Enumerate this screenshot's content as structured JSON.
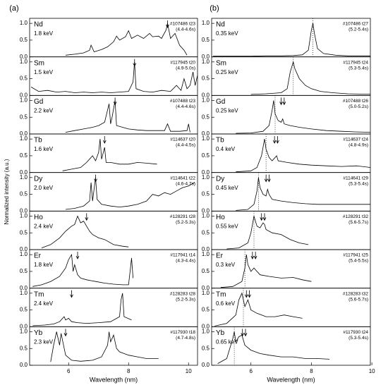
{
  "panel_labels": [
    "(a)",
    "(b)"
  ],
  "y_label": "Normalized intensity (a.u.)",
  "chart_data": [
    {
      "type": "line",
      "title": "Nd",
      "subtitle": "1.8 keV",
      "annotations": [
        "#107486 t23",
        "(4.4-4.6s)"
      ],
      "color": "#000000",
      "xlim": [
        4.7,
        10.3
      ],
      "ylim": [
        0,
        1.15
      ],
      "yticks": [
        {
          "value": 0,
          "label": "0.0"
        },
        0.5,
        {
          "value": 1,
          "label": "1.0"
        }
      ],
      "x": [
        5.9,
        6.2,
        6.5,
        6.7,
        6.75,
        6.85,
        7.1,
        7.3,
        7.5,
        7.6,
        7.7,
        7.9,
        8.0,
        8.1,
        8.3,
        8.5,
        8.7,
        8.8,
        9.0,
        9.1,
        9.25,
        9.3,
        9.4,
        9.55,
        9.7,
        9.85,
        9.95
      ],
      "values": [
        0.05,
        0.08,
        0.12,
        0.2,
        0.35,
        0.15,
        0.22,
        0.3,
        0.45,
        0.62,
        0.5,
        0.6,
        0.78,
        0.55,
        0.65,
        0.55,
        0.7,
        0.6,
        0.62,
        0.55,
        0.8,
        1.0,
        0.55,
        0.7,
        0.35,
        0.2,
        0.05
      ],
      "arrows_x": [
        9.3
      ]
    },
    {
      "type": "line",
      "title": "Sm",
      "subtitle": "1.5 keV",
      "annotations": [
        "#117945 t20",
        "(4.9-5.0s)"
      ],
      "color": "#000000",
      "xlim": [
        4.7,
        10.3
      ],
      "ylim": [
        0,
        1.15
      ],
      "yticks": [
        {
          "value": 0,
          "label": "0.0"
        },
        0.5,
        {
          "value": 1,
          "label": "1.0"
        }
      ],
      "x": [
        4.75,
        5.0,
        5.3,
        5.6,
        5.9,
        6.2,
        6.5,
        6.8,
        7.1,
        7.4,
        7.7,
        8.0,
        8.15,
        8.2,
        8.25,
        8.5,
        8.8,
        9.1,
        9.4,
        9.6,
        9.75,
        9.85,
        9.95,
        10.05,
        10.15,
        10.22,
        10.3
      ],
      "values": [
        0.25,
        0.12,
        0.15,
        0.1,
        0.12,
        0.08,
        0.1,
        0.08,
        0.1,
        0.08,
        0.1,
        0.12,
        0.4,
        1.0,
        0.2,
        0.12,
        0.1,
        0.15,
        0.12,
        0.3,
        0.15,
        0.5,
        0.2,
        0.3,
        0.7,
        0.3,
        0.6
      ],
      "arrows_x": [
        8.2
      ]
    },
    {
      "type": "line",
      "title": "Gd",
      "subtitle": "2.2 keV",
      "annotations": [
        "#107488 t23",
        "(4.4-4.6s)"
      ],
      "color": "#000000",
      "xlim": [
        4.7,
        10.3
      ],
      "ylim": [
        0,
        1.15
      ],
      "yticks": [
        {
          "value": 0,
          "label": "0.0"
        },
        0.5,
        {
          "value": 1,
          "label": "1.0"
        }
      ],
      "x": [
        5.9,
        6.2,
        6.5,
        6.8,
        7.0,
        7.2,
        7.35,
        7.4,
        7.45,
        7.55,
        7.6,
        7.8,
        8.0,
        8.3,
        8.6,
        8.9,
        9.2,
        9.3,
        9.4,
        9.7,
        9.95,
        10.0,
        10.05
      ],
      "values": [
        0.05,
        0.1,
        0.15,
        0.2,
        0.25,
        0.35,
        0.9,
        0.3,
        0.5,
        1.0,
        0.25,
        0.2,
        0.15,
        0.12,
        0.1,
        0.1,
        0.1,
        0.3,
        0.08,
        0.08,
        0.1,
        0.3,
        0.05
      ],
      "arrows_x": [
        7.55
      ]
    },
    {
      "type": "line",
      "title": "Tb",
      "subtitle": "1.6 keV",
      "annotations": [
        "#114637 t20",
        "(4.4-4.5s)"
      ],
      "color": "#000000",
      "xlim": [
        4.7,
        10.3
      ],
      "ylim": [
        0,
        1.15
      ],
      "yticks": [
        {
          "value": 0,
          "label": "0.0"
        },
        0.5,
        {
          "value": 1,
          "label": "1.0"
        }
      ],
      "x": [
        5.8,
        6.1,
        6.4,
        6.6,
        6.8,
        6.9,
        7.0,
        7.05,
        7.1,
        7.2,
        7.25,
        7.4,
        7.7,
        8.0,
        8.3,
        8.6,
        8.95
      ],
      "values": [
        0.05,
        0.1,
        0.15,
        0.3,
        0.5,
        0.35,
        0.6,
        1.0,
        0.4,
        0.75,
        0.3,
        0.3,
        0.25,
        0.25,
        0.3,
        0.28,
        0.25
      ],
      "arrows_x": [
        7.2
      ]
    },
    {
      "type": "line",
      "title": "Dy",
      "subtitle": "2.0 keV",
      "annotations": [
        "#114641 t22",
        "(4.6-4.7s)"
      ],
      "color": "#000000",
      "xlim": [
        4.7,
        10.3
      ],
      "ylim": [
        0,
        1.15
      ],
      "yticks": [
        {
          "value": 0,
          "label": "0.0"
        },
        0.5,
        {
          "value": 1,
          "label": "1.0"
        }
      ],
      "x": [
        5.9,
        6.2,
        6.5,
        6.7,
        6.75,
        6.8,
        6.9,
        6.95,
        7.1,
        7.4,
        7.7,
        8.0,
        8.3,
        8.6,
        8.8,
        9.0,
        9.2,
        9.4,
        9.6,
        9.8,
        10.0,
        10.2
      ],
      "values": [
        0.05,
        0.08,
        0.15,
        0.3,
        0.85,
        0.3,
        1.0,
        0.35,
        0.2,
        0.15,
        0.12,
        0.15,
        0.2,
        0.3,
        0.5,
        0.45,
        0.55,
        0.5,
        0.6,
        0.7,
        0.75,
        0.85
      ],
      "arrows_x": [
        6.9
      ]
    },
    {
      "type": "line",
      "title": "Ho",
      "subtitle": "2.4 keV",
      "annotations": [
        "#128291 t28",
        "(5.2-5.3s)"
      ],
      "color": "#000000",
      "xlim": [
        4.7,
        10.3
      ],
      "ylim": [
        0,
        1.15
      ],
      "yticks": [
        {
          "value": 0,
          "label": "0.0"
        },
        0.5,
        {
          "value": 1,
          "label": "1.0"
        }
      ],
      "x": [
        5.1,
        5.4,
        5.7,
        5.9,
        6.1,
        6.2,
        6.3,
        6.4,
        6.5,
        6.6,
        6.7,
        6.8,
        7.0,
        7.2,
        7.5,
        7.8,
        8.0
      ],
      "values": [
        0.05,
        0.15,
        0.35,
        0.55,
        0.7,
        0.75,
        1.0,
        0.8,
        0.85,
        0.7,
        0.55,
        0.45,
        0.35,
        0.3,
        0.15,
        0.1,
        0.08
      ],
      "arrows_x": [
        6.6
      ]
    },
    {
      "type": "line",
      "title": "Er",
      "subtitle": "1.8 keV",
      "annotations": [
        "#117941 t14",
        "(4.3-4.4s)"
      ],
      "color": "#000000",
      "xlim": [
        4.7,
        10.3
      ],
      "ylim": [
        0,
        1.15
      ],
      "yticks": [
        {
          "value": 0,
          "label": "0.0"
        },
        0.5,
        {
          "value": 1,
          "label": "1.0"
        }
      ],
      "x": [
        4.8,
        5.1,
        5.4,
        5.7,
        5.9,
        6.0,
        6.1,
        6.15,
        6.2,
        6.3,
        6.4,
        6.6,
        6.9,
        7.2,
        7.5,
        7.8,
        8.0,
        8.05,
        8.1,
        8.15
      ],
      "values": [
        0.05,
        0.1,
        0.2,
        0.35,
        0.6,
        0.85,
        1.0,
        0.5,
        0.7,
        0.4,
        0.3,
        0.25,
        0.2,
        0.15,
        0.12,
        0.1,
        0.1,
        0.5,
        0.9,
        0.3
      ],
      "arrows_x": [
        6.3
      ]
    },
    {
      "type": "line",
      "title": "Tm",
      "subtitle": "2.4 keV",
      "annotations": [
        "#128283 t28",
        "(5.2-5.3s)"
      ],
      "color": "#000000",
      "xlim": [
        4.7,
        10.3
      ],
      "ylim": [
        0,
        1.15
      ],
      "yticks": [
        {
          "value": 0,
          "label": "0.0"
        },
        0.5,
        {
          "value": 1,
          "label": "1.0"
        }
      ],
      "x": [
        4.8,
        5.2,
        5.5,
        5.7,
        5.85,
        5.9,
        6.0,
        6.1,
        6.3,
        6.6,
        7.0,
        7.4,
        7.7,
        7.75,
        7.8,
        7.85,
        8.1
      ],
      "values": [
        0.03,
        0.05,
        0.08,
        0.15,
        0.3,
        0.2,
        0.25,
        0.15,
        0.12,
        0.1,
        0.12,
        0.15,
        0.3,
        0.8,
        1.0,
        0.3,
        0.2
      ],
      "arrows_x": [
        6.1
      ]
    },
    {
      "type": "line",
      "title": "Yb",
      "subtitle": "2.3 keV",
      "annotations": [
        "#117930 t18",
        "(4.7-4.8s)"
      ],
      "color": "#000000",
      "xlim": [
        4.7,
        10.3
      ],
      "ylim": [
        0,
        1.15
      ],
      "yticks": [
        {
          "value": 0,
          "label": "0.0"
        },
        0.5,
        {
          "value": 1,
          "label": "1.0"
        }
      ],
      "xticks": [
        6,
        8,
        10
      ],
      "xlabel": "Wavelength (nm)",
      "x": [
        5.4,
        5.5,
        5.6,
        5.7,
        5.75,
        5.9,
        6.1,
        6.4,
        6.8,
        7.1,
        7.3,
        7.35,
        7.4,
        7.5,
        7.6,
        7.7,
        8.0,
        8.3,
        8.6,
        9.0
      ],
      "values": [
        0.1,
        0.6,
        1.0,
        0.6,
        0.95,
        0.3,
        0.15,
        0.12,
        0.15,
        0.25,
        0.6,
        1.0,
        0.7,
        0.9,
        0.5,
        0.4,
        0.3,
        0.25,
        0.2,
        0.2
      ],
      "arrows_x": [
        5.9
      ]
    },
    {
      "type": "line",
      "title": "Nd",
      "subtitle": "0.35 keV",
      "annotations": [
        "#107486 t27",
        "(5.2-5.4s)"
      ],
      "color": "#000000",
      "xlim": [
        4.7,
        9.95
      ],
      "ylim": [
        0,
        1.15
      ],
      "yticks": [
        {
          "value": 0,
          "label": "0.0"
        },
        0.5,
        {
          "value": 1,
          "label": "1.0"
        }
      ],
      "x": [
        4.75,
        5.5,
        6.0,
        6.5,
        7.0,
        7.4,
        7.7,
        7.9,
        8.0,
        8.05,
        8.1,
        8.2,
        8.4,
        8.8,
        9.2,
        9.6,
        9.95
      ],
      "values": [
        0.02,
        0.02,
        0.02,
        0.03,
        0.03,
        0.04,
        0.06,
        0.2,
        0.8,
        1.0,
        0.7,
        0.25,
        0.1,
        0.05,
        0.03,
        0.03,
        0.03
      ],
      "dotted_x": 8.05
    },
    {
      "type": "line",
      "title": "Sm",
      "subtitle": "0.25 keV",
      "annotations": [
        "#117945 t24",
        "(5.3-5.4s)"
      ],
      "color": "#000000",
      "xlim": [
        4.7,
        9.95
      ],
      "ylim": [
        0,
        1.15
      ],
      "yticks": [
        {
          "value": 0,
          "label": "0.0"
        },
        0.5,
        {
          "value": 1,
          "label": "1.0"
        }
      ],
      "x": [
        6.0,
        6.5,
        7.0,
        7.2,
        7.3,
        7.4,
        7.45,
        7.6,
        7.8,
        8.0,
        8.3,
        8.7,
        9.2,
        9.6,
        9.95
      ],
      "values": [
        0.03,
        0.05,
        0.08,
        0.2,
        0.7,
        1.0,
        0.8,
        0.5,
        0.3,
        0.2,
        0.12,
        0.08,
        0.05,
        0.04,
        0.04
      ],
      "dotted_x": 7.4
    },
    {
      "type": "line",
      "title": "Gd",
      "subtitle": "0.25 keV",
      "annotations": [
        "#107488 t26",
        "(5.0-5.2s)"
      ],
      "color": "#000000",
      "xlim": [
        4.7,
        9.95
      ],
      "ylim": [
        0,
        1.15
      ],
      "yticks": [
        {
          "value": 0,
          "label": "0.0"
        },
        0.5,
        {
          "value": 1,
          "label": "1.0"
        }
      ],
      "x": [
        5.5,
        6.0,
        6.4,
        6.6,
        6.7,
        6.75,
        6.8,
        6.9,
        7.0,
        7.05,
        7.1,
        7.3,
        7.6,
        8.0,
        8.5,
        9.0,
        9.5,
        9.95
      ],
      "values": [
        0.02,
        0.03,
        0.08,
        0.25,
        0.7,
        1.0,
        0.6,
        0.4,
        0.35,
        0.45,
        0.3,
        0.25,
        0.2,
        0.15,
        0.1,
        0.08,
        0.06,
        0.05
      ],
      "arrows_x": [
        7.0,
        7.1
      ],
      "dotted_x": 6.8
    },
    {
      "type": "line",
      "title": "Tb",
      "subtitle": "0.4 keV",
      "annotations": [
        "#114637 t24",
        "(4.8-4.9s)"
      ],
      "color": "#000000",
      "xlim": [
        4.7,
        9.95
      ],
      "ylim": [
        0,
        1.15
      ],
      "yticks": [
        {
          "value": 0,
          "label": "0.0"
        },
        0.5,
        {
          "value": 1,
          "label": "1.0"
        }
      ],
      "x": [
        5.5,
        6.0,
        6.2,
        6.35,
        6.45,
        6.5,
        6.6,
        6.7,
        6.8,
        6.85,
        6.9,
        7.2,
        7.6,
        8.0,
        8.5,
        9.0,
        9.5,
        9.95
      ],
      "values": [
        0.02,
        0.05,
        0.15,
        0.5,
        1.0,
        0.7,
        0.45,
        0.35,
        0.45,
        0.5,
        0.35,
        0.3,
        0.25,
        0.22,
        0.2,
        0.18,
        0.2,
        0.15
      ],
      "arrows_x": [
        6.78,
        6.88
      ],
      "dotted_x": 6.5
    },
    {
      "type": "line",
      "title": "Dy",
      "subtitle": "0.45 keV",
      "annotations": [
        "#114641 t29",
        "(5.3-5.4s)"
      ],
      "color": "#000000",
      "xlim": [
        4.7,
        9.95
      ],
      "ylim": [
        0,
        1.15
      ],
      "yticks": [
        {
          "value": 0,
          "label": "0.0"
        },
        0.5,
        {
          "value": 1,
          "label": "1.0"
        }
      ],
      "x": [
        5.5,
        5.9,
        6.1,
        6.2,
        6.25,
        6.3,
        6.4,
        6.5,
        6.55,
        6.6,
        6.7,
        7.0,
        7.4,
        7.8,
        8.2,
        8.6,
        9.0,
        9.5,
        9.95
      ],
      "values": [
        0.02,
        0.05,
        0.2,
        0.6,
        1.0,
        0.7,
        0.5,
        0.45,
        0.65,
        0.5,
        0.35,
        0.3,
        0.25,
        0.22,
        0.2,
        0.2,
        0.2,
        0.2,
        0.2
      ],
      "arrows_x": [
        6.5,
        6.6
      ],
      "dotted_x": 6.25
    },
    {
      "type": "line",
      "title": "Ho",
      "subtitle": "0.55 keV",
      "annotations": [
        "#128291 t32",
        "(5.6-5.7s)"
      ],
      "color": "#000000",
      "xlim": [
        4.7,
        9.95
      ],
      "ylim": [
        0,
        1.15
      ],
      "yticks": [
        {
          "value": 0,
          "label": "0.0"
        },
        0.5,
        {
          "value": 1,
          "label": "1.0"
        }
      ],
      "x": [
        5.2,
        5.6,
        5.9,
        6.0,
        6.1,
        6.15,
        6.2,
        6.3,
        6.4,
        6.45,
        6.5,
        6.7,
        7.0,
        7.3,
        7.6,
        7.9
      ],
      "values": [
        0.02,
        0.05,
        0.2,
        0.5,
        1.0,
        0.85,
        0.7,
        0.65,
        0.8,
        0.75,
        0.6,
        0.5,
        0.45,
        0.3,
        0.2,
        0.15
      ],
      "arrows_x": [
        6.35,
        6.45
      ],
      "dotted_x": 6.1
    },
    {
      "type": "line",
      "title": "Er",
      "subtitle": "0.3 keV",
      "annotations": [
        "#117941 t25",
        "(5.4-5.5s)"
      ],
      "color": "#000000",
      "xlim": [
        4.7,
        9.95
      ],
      "ylim": [
        0,
        1.15
      ],
      "yticks": [
        {
          "value": 0,
          "label": "0.0"
        },
        0.5,
        {
          "value": 1,
          "label": "1.0"
        }
      ],
      "x": [
        5.0,
        5.4,
        5.7,
        5.8,
        5.85,
        5.9,
        6.0,
        6.1,
        6.15,
        6.3,
        6.6,
        7.0,
        7.4,
        7.7,
        8.0
      ],
      "values": [
        0.02,
        0.05,
        0.2,
        0.6,
        1.0,
        0.7,
        0.5,
        0.6,
        0.55,
        0.4,
        0.35,
        0.3,
        0.32,
        0.25,
        0.2
      ],
      "arrows_x": [
        6.05,
        6.15
      ],
      "dotted_x": 5.8
    },
    {
      "type": "line",
      "title": "Tm",
      "subtitle": "0.6 keV",
      "annotations": [
        "#128283 t32",
        "(5.6-5.7s)"
      ],
      "color": "#000000",
      "xlim": [
        4.7,
        9.95
      ],
      "ylim": [
        0,
        1.15
      ],
      "yticks": [
        {
          "value": 0,
          "label": "0.0"
        },
        0.5,
        {
          "value": 1,
          "label": "1.0"
        }
      ],
      "x": [
        4.8,
        5.2,
        5.5,
        5.6,
        5.7,
        5.8,
        5.9,
        6.0,
        6.2,
        6.5,
        6.8,
        7.1,
        7.4,
        7.7
      ],
      "values": [
        0.02,
        0.1,
        0.35,
        0.8,
        1.0,
        0.6,
        0.8,
        0.5,
        0.4,
        0.3,
        0.3,
        0.35,
        0.3,
        0.25
      ],
      "arrows_x": [
        5.85,
        5.95
      ],
      "dotted_x": 5.75
    },
    {
      "type": "line",
      "title": "Yb",
      "subtitle": "0.65 keV",
      "annotations": [
        "#117930 t24",
        "(5.3-5.4s)"
      ],
      "color": "#000000",
      "xlim": [
        4.7,
        9.95
      ],
      "ylim": [
        0,
        1.15
      ],
      "yticks": [
        {
          "value": 0,
          "label": "0.0"
        },
        0.5,
        {
          "value": 1,
          "label": "1.0"
        }
      ],
      "xticks": [
        6,
        8,
        10
      ],
      "xlabel": "Wavelength (nm)",
      "x": [
        4.9,
        5.2,
        5.4,
        5.45,
        5.5,
        5.6,
        5.7,
        5.8,
        6.0,
        6.3,
        6.6,
        7.0,
        7.4,
        7.8,
        8.2,
        8.6
      ],
      "values": [
        0.05,
        0.2,
        0.8,
        1.0,
        0.7,
        0.85,
        0.9,
        0.6,
        0.45,
        0.35,
        0.3,
        0.25,
        0.25,
        0.2,
        0.2,
        0.18
      ],
      "arrows_x": [
        5.72,
        5.82
      ],
      "dotted_x": 5.45
    }
  ]
}
